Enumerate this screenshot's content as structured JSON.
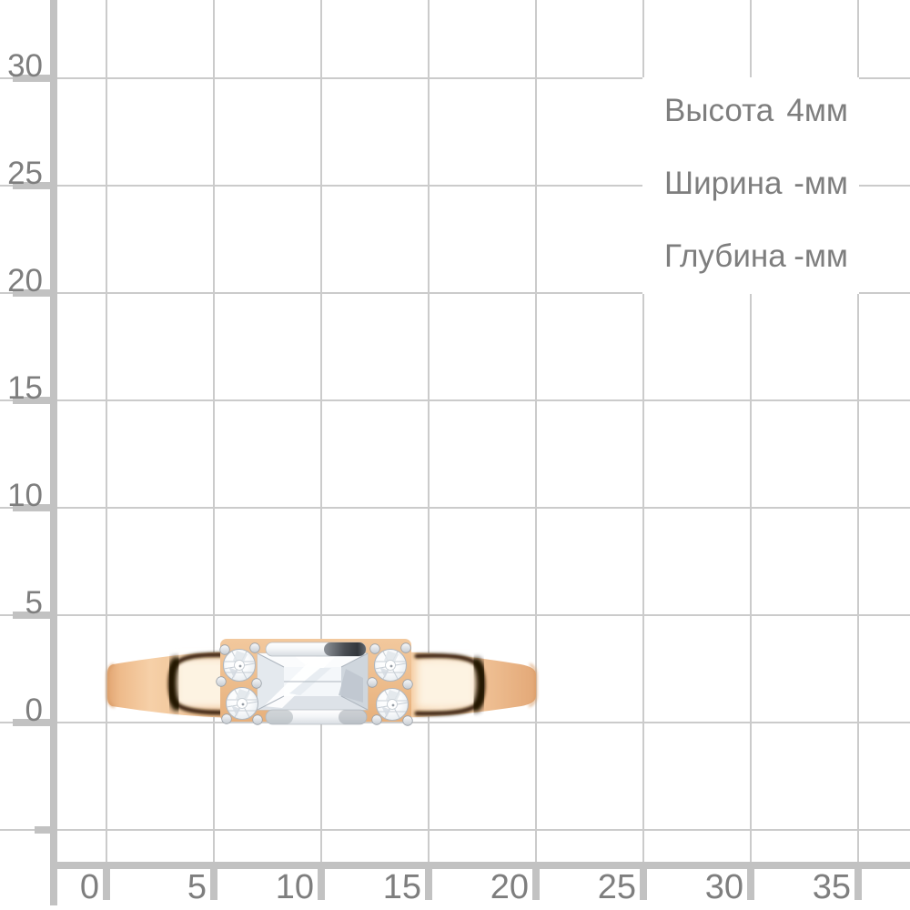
{
  "figure": {
    "name": "rose-gold-ring-side-view-on-mm-grid"
  },
  "panel": {
    "rows": [
      {
        "label": "Высота",
        "value": "4мм"
      },
      {
        "label": "Ширина",
        "value": "-мм"
      },
      {
        "label": "Глубина",
        "value": "-мм"
      }
    ]
  },
  "x_axis": {
    "tick_labels": [
      "0",
      "5",
      "10",
      "15",
      "20",
      "25",
      "30",
      "35"
    ]
  },
  "y_axis": {
    "tick_labels": [
      "30",
      "25",
      "20",
      "15",
      "10",
      "5",
      "0"
    ]
  },
  "colors": {
    "background": "#ffffff",
    "grid_line": "#cbcbcb",
    "axis_bar": "#c2c2c2",
    "label_text": "#7e7e7e",
    "gold_base": "#efbf90",
    "gold_highlight": "#fdf3e2",
    "gold_shadow": "#33200a",
    "metal_white": "#f5f7f8",
    "metal_dark": "#3a3e44",
    "stone_white": "#ffffff",
    "stone_shade": "#d5dbe2"
  }
}
